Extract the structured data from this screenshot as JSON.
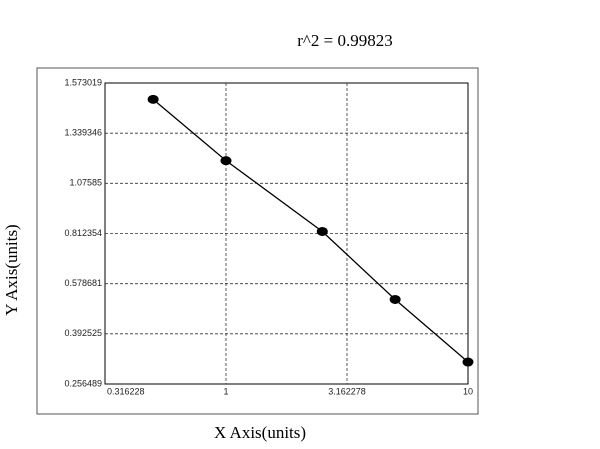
{
  "chart_data": {
    "type": "scatter",
    "title": "r^2 = 0.99823",
    "x_label": "X Axis(units)",
    "y_label": "Y Axis(units)",
    "x": [
      0.5,
      1,
      2.5,
      5,
      10
    ],
    "values": [
      1.497,
      1.195,
      0.823,
      0.52,
      0.316
    ],
    "color": "#000000",
    "x_scale": "log",
    "xlim": [
      0.316228,
      10
    ],
    "xticks": [
      0.316228,
      1,
      3.162278,
      10
    ],
    "ylim": [
      0.256489,
      1.573019
    ],
    "yticks": [
      0.256489,
      0.392525,
      0.578681,
      0.812354,
      1.07585,
      1.339346,
      1.573019
    ],
    "grid": true
  }
}
